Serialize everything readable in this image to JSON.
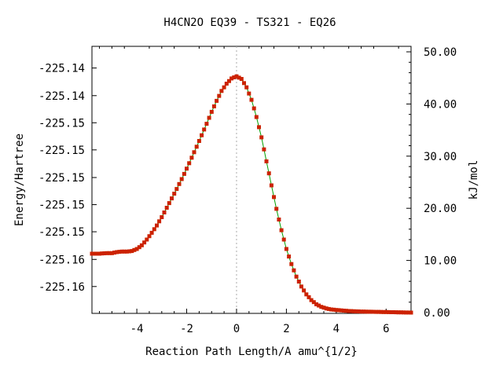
{
  "chart_data": {
    "type": "line",
    "title": "H4CN2O   EQ39 - TS321 - EQ26",
    "xlabel": "Reaction Path Length/A amu^{1/2}",
    "ylabel_left": "Energy/Hartree",
    "ylabel_right": "kJ/mol",
    "xlim": [
      -5.8,
      7.0
    ],
    "ylim_right": [
      0,
      50
    ],
    "x_ticks": [
      -4,
      -2,
      0,
      2,
      4,
      6
    ],
    "x_tick_labels": [
      "-4",
      "-2",
      "0",
      "2",
      "4",
      "6"
    ],
    "left_ticks": [
      {
        "kj": 5.0,
        "label": "-225.16"
      },
      {
        "kj": 10.2,
        "label": "-225.16"
      },
      {
        "kj": 15.5,
        "label": "-225.15"
      },
      {
        "kj": 20.7,
        "label": "-225.15"
      },
      {
        "kj": 25.9,
        "label": "-225.15"
      },
      {
        "kj": 31.2,
        "label": "-225.15"
      },
      {
        "kj": 36.4,
        "label": "-225.15"
      },
      {
        "kj": 41.6,
        "label": "-225.14"
      },
      {
        "kj": 46.9,
        "label": "-225.14"
      }
    ],
    "right_ticks": [
      0,
      10,
      20,
      30,
      40,
      50
    ],
    "right_tick_labels": [
      "0.00",
      "10.00",
      "20.00",
      "30.00",
      "40.00",
      "50.00"
    ],
    "ts_marker_x": 0,
    "series": [
      {
        "line_color": "#00a000",
        "marker_color": "#cc2200",
        "x": [
          -5.8,
          -5.5,
          -5.2,
          -5.0,
          -4.8,
          -4.6,
          -4.4,
          -4.2,
          -4.0,
          -3.8,
          -3.6,
          -3.4,
          -3.2,
          -3.0,
          -2.8,
          -2.6,
          -2.4,
          -2.2,
          -2.0,
          -1.8,
          -1.6,
          -1.4,
          -1.2,
          -1.0,
          -0.8,
          -0.6,
          -0.4,
          -0.2,
          0.0,
          0.2,
          0.4,
          0.6,
          0.8,
          1.0,
          1.2,
          1.4,
          1.6,
          1.8,
          2.0,
          2.2,
          2.4,
          2.6,
          2.8,
          3.0,
          3.2,
          3.4,
          3.6,
          3.8,
          4.0,
          4.5,
          5.0,
          5.5,
          6.0,
          6.5,
          7.0
        ],
        "y": [
          11.3,
          11.3,
          11.4,
          11.4,
          11.6,
          11.7,
          11.7,
          11.8,
          12.2,
          12.9,
          14.0,
          15.3,
          16.7,
          18.3,
          20.1,
          21.9,
          23.7,
          25.6,
          27.6,
          29.7,
          31.8,
          34.0,
          36.2,
          38.5,
          40.6,
          42.5,
          43.9,
          44.9,
          45.3,
          44.8,
          43.2,
          40.8,
          37.5,
          33.6,
          29.0,
          24.4,
          19.9,
          15.8,
          12.2,
          9.3,
          6.9,
          5.0,
          3.5,
          2.4,
          1.6,
          1.1,
          0.8,
          0.6,
          0.5,
          0.3,
          0.2,
          0.15,
          0.1,
          0.05,
          0.0
        ]
      }
    ]
  }
}
